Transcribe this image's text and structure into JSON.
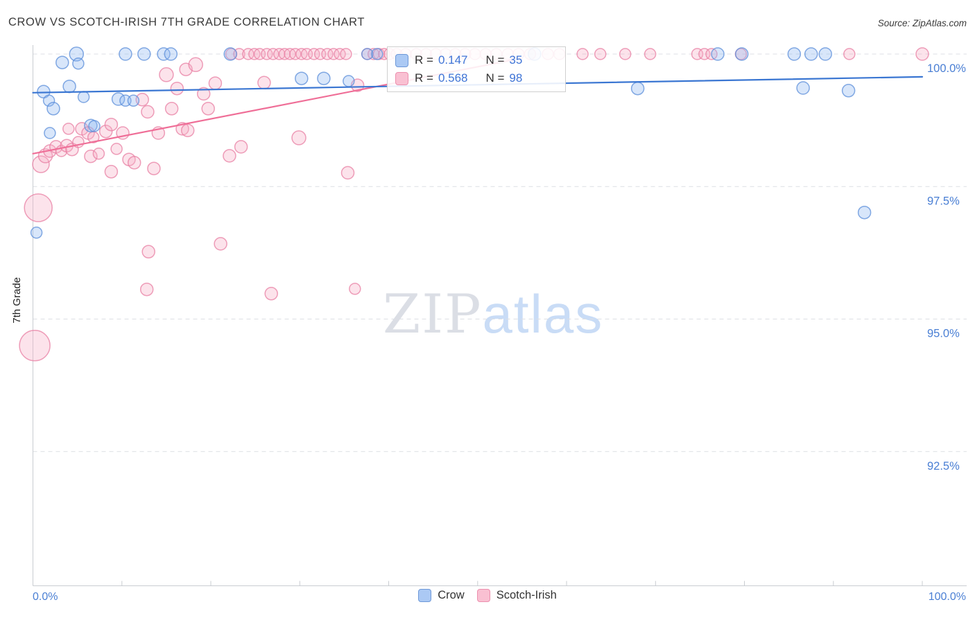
{
  "header": {
    "title": "CROW VS SCOTCH-IRISH 7TH GRADE CORRELATION CHART",
    "source": "Source: ZipAtlas.com"
  },
  "watermark": {
    "zip": "ZIP",
    "atlas": "atlas"
  },
  "axes": {
    "y_label": "7th Grade",
    "x_min_label": "0.0%",
    "x_max_label": "100.0%"
  },
  "legend_box": {
    "rows": [
      {
        "series": "Crow",
        "r_label": "R =",
        "r_value": "0.147",
        "n_label": "N =",
        "n_value": "35"
      },
      {
        "series": "Scotch-Irish",
        "r_label": "R =",
        "r_value": "0.568",
        "n_label": "N =",
        "n_value": "98"
      }
    ]
  },
  "bottom_legend": {
    "items": [
      {
        "label": "Crow"
      },
      {
        "label": "Scotch-Irish"
      }
    ]
  },
  "chart_data": {
    "type": "scatter",
    "title": "CROW VS SCOTCH-IRISH 7TH GRADE CORRELATION CHART",
    "xlabel": "",
    "ylabel": "7th Grade",
    "xlim": [
      0,
      100
    ],
    "ylim": [
      90,
      100.5
    ],
    "grid": "horizontal-dashed",
    "legend_position": "top-center",
    "x_axis_labels": {
      "min": "0.0%",
      "max": "100.0%"
    },
    "y_ticks": [
      {
        "value": 100.0,
        "label": "100.0%"
      },
      {
        "value": 97.5,
        "label": "97.5%"
      },
      {
        "value": 95.0,
        "label": "95.0%"
      },
      {
        "value": 92.5,
        "label": "92.5%"
      }
    ],
    "series": [
      {
        "name": "Crow",
        "R": 0.147,
        "N": 35,
        "marker": {
          "fill": "#8eb8f0",
          "stroke": "#5b8dd9"
        },
        "trend": {
          "x": [
            0,
            100
          ],
          "y": [
            99.27,
            99.57
          ],
          "color": "#3a76d2"
        },
        "points": [
          [
            0.4,
            96.63,
            8
          ],
          [
            1.2,
            99.29,
            9
          ],
          [
            1.8,
            99.12,
            8
          ],
          [
            2.3,
            98.97,
            9
          ],
          [
            1.9,
            98.51,
            8
          ],
          [
            3.3,
            99.84,
            9
          ],
          [
            4.1,
            99.39,
            9
          ],
          [
            4.9,
            100,
            10
          ],
          [
            5.1,
            99.82,
            8
          ],
          [
            5.7,
            99.19,
            8
          ],
          [
            6.5,
            98.65,
            9
          ],
          [
            6.9,
            98.64,
            8
          ],
          [
            9.6,
            99.15,
            9
          ],
          [
            10.4,
            99.12,
            8
          ],
          [
            11.3,
            99.12,
            8
          ],
          [
            10.4,
            100,
            9
          ],
          [
            12.5,
            100,
            9
          ],
          [
            14.7,
            100,
            9
          ],
          [
            15.5,
            100,
            9
          ],
          [
            22.2,
            100,
            9
          ],
          [
            30.2,
            99.54,
            9
          ],
          [
            32.7,
            99.54,
            9
          ],
          [
            35.5,
            99.49,
            8
          ],
          [
            37.6,
            100,
            8
          ],
          [
            38.7,
            100,
            8
          ],
          [
            56.4,
            100,
            9
          ],
          [
            68.0,
            99.35,
            9
          ],
          [
            77.0,
            100,
            9
          ],
          [
            79.7,
            100,
            9
          ],
          [
            85.6,
            100,
            9
          ],
          [
            86.6,
            99.36,
            9
          ],
          [
            87.5,
            100,
            9
          ],
          [
            89.1,
            100,
            9
          ],
          [
            91.7,
            99.31,
            9
          ],
          [
            93.5,
            97.01,
            9
          ]
        ]
      },
      {
        "name": "Scotch-Irish",
        "R": 0.568,
        "N": 98,
        "marker": {
          "fill": "#f7b0c7",
          "stroke": "#e87fa3"
        },
        "trend": {
          "x": [
            0,
            54
          ],
          "y": [
            98.12,
            99.89
          ],
          "color": "#ef6e97"
        },
        "points": [
          [
            0.2,
            94.5,
            22
          ],
          [
            0.6,
            97.1,
            20
          ],
          [
            0.9,
            97.92,
            12
          ],
          [
            1.4,
            98.08,
            10
          ],
          [
            1.9,
            98.17,
            9
          ],
          [
            2.6,
            98.25,
            9
          ],
          [
            3.2,
            98.17,
            8
          ],
          [
            3.8,
            98.27,
            9
          ],
          [
            4.4,
            98.2,
            9
          ],
          [
            5.1,
            98.34,
            8
          ],
          [
            5.5,
            98.59,
            9
          ],
          [
            6.2,
            98.51,
            9
          ],
          [
            6.8,
            98.43,
            8
          ],
          [
            6.5,
            98.07,
            9
          ],
          [
            7.4,
            98.12,
            8
          ],
          [
            8.2,
            98.54,
            9
          ],
          [
            8.8,
            98.67,
            9
          ],
          [
            9.4,
            98.21,
            8
          ],
          [
            4.0,
            98.59,
            8
          ],
          [
            10.1,
            98.51,
            9
          ],
          [
            10.8,
            98.01,
            9
          ],
          [
            11.4,
            97.95,
            9
          ],
          [
            8.8,
            97.78,
            9
          ],
          [
            12.8,
            95.56,
            9
          ],
          [
            13.0,
            96.27,
            9
          ],
          [
            13.6,
            97.84,
            9
          ],
          [
            14.1,
            98.51,
            9
          ],
          [
            12.3,
            99.14,
            9
          ],
          [
            12.9,
            98.91,
            9
          ],
          [
            15.0,
            99.61,
            10
          ],
          [
            15.6,
            98.97,
            9
          ],
          [
            16.2,
            99.35,
            9
          ],
          [
            16.8,
            98.59,
            9
          ],
          [
            17.4,
            98.56,
            9
          ],
          [
            17.2,
            99.71,
            9
          ],
          [
            18.3,
            99.8,
            10
          ],
          [
            19.2,
            99.25,
            9
          ],
          [
            19.7,
            98.97,
            9
          ],
          [
            20.5,
            99.45,
            9
          ],
          [
            21.1,
            96.42,
            9
          ],
          [
            22.1,
            98.08,
            9
          ],
          [
            22.3,
            100,
            8
          ],
          [
            23.4,
            98.25,
            9
          ],
          [
            23.2,
            100,
            8
          ],
          [
            24.2,
            100,
            8
          ],
          [
            26.0,
            99.46,
            9
          ],
          [
            26.8,
            95.48,
            9
          ],
          [
            24.9,
            100,
            8
          ],
          [
            25.5,
            100,
            8
          ],
          [
            26.3,
            100,
            8
          ],
          [
            27.0,
            100,
            8
          ],
          [
            29.9,
            98.42,
            10
          ],
          [
            27.7,
            100,
            8
          ],
          [
            28.3,
            100,
            8
          ],
          [
            28.9,
            100,
            8
          ],
          [
            29.5,
            100,
            8
          ],
          [
            30.2,
            100,
            8
          ],
          [
            30.8,
            100,
            8
          ],
          [
            31.6,
            100,
            8
          ],
          [
            36.5,
            99.41,
            9
          ],
          [
            35.4,
            97.76,
            9
          ],
          [
            36.2,
            95.57,
            8
          ],
          [
            32.3,
            100,
            8
          ],
          [
            33.1,
            100,
            8
          ],
          [
            33.8,
            100,
            8
          ],
          [
            34.5,
            100,
            8
          ],
          [
            35.2,
            100,
            8
          ],
          [
            37.6,
            100,
            8
          ],
          [
            38.3,
            100,
            8
          ],
          [
            38.9,
            100,
            8
          ],
          [
            39.5,
            100,
            8
          ],
          [
            40.1,
            100,
            8
          ],
          [
            40.9,
            100,
            8
          ],
          [
            41.9,
            100,
            8
          ],
          [
            43.1,
            100,
            8
          ],
          [
            44.2,
            100,
            8
          ],
          [
            45.3,
            100,
            8
          ],
          [
            46.4,
            100,
            8
          ],
          [
            47.5,
            100,
            8
          ],
          [
            48.6,
            100,
            8
          ],
          [
            49.7,
            100,
            8
          ],
          [
            50.9,
            100,
            8
          ],
          [
            52.1,
            100,
            8
          ],
          [
            53.4,
            100,
            8
          ],
          [
            54.6,
            100,
            8
          ],
          [
            55.9,
            100,
            8
          ],
          [
            57.9,
            100,
            8
          ],
          [
            59.2,
            100,
            8
          ],
          [
            61.8,
            100,
            8
          ],
          [
            63.8,
            100,
            8
          ],
          [
            66.6,
            100,
            8
          ],
          [
            69.4,
            100,
            8
          ],
          [
            74.7,
            100,
            8
          ],
          [
            75.5,
            100,
            8
          ],
          [
            76.3,
            100,
            8
          ],
          [
            79.6,
            100,
            8
          ],
          [
            91.8,
            100,
            8
          ],
          [
            100.0,
            100,
            9
          ]
        ]
      }
    ]
  }
}
